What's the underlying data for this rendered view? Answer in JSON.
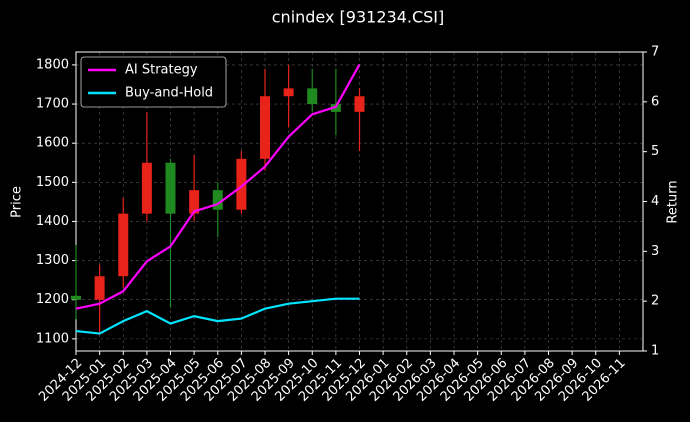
{
  "chart_data": {
    "type": "candlestick",
    "title": "cnindex [931234.CSI]",
    "y_label": "Price",
    "y2_label": "Return",
    "x": [
      "2024-12",
      "2025-01",
      "2025-02",
      "2025-03",
      "2025-04",
      "2025-05",
      "2025-06",
      "2025-07",
      "2025-08",
      "2025-09",
      "2025-10",
      "2025-11",
      "2025-12"
    ],
    "open": [
      1210,
      1200,
      1260,
      1420,
      1550,
      1420,
      1480,
      1430,
      1560,
      1720,
      1740,
      1700,
      1680
    ],
    "high": [
      1340,
      1290,
      1460,
      1680,
      1560,
      1570,
      1500,
      1580,
      1790,
      1800,
      1790,
      1790,
      1740
    ],
    "low": [
      1150,
      1110,
      1230,
      1400,
      1180,
      1400,
      1360,
      1420,
      1530,
      1640,
      1680,
      1620,
      1580
    ],
    "close": [
      1200,
      1260,
      1420,
      1550,
      1420,
      1480,
      1430,
      1560,
      1720,
      1740,
      1700,
      1680,
      1720
    ],
    "up_color": "#e8231a",
    "down_color": "#1f8a1f",
    "series": [
      {
        "name": "AI Strategy",
        "color": "#ff00ff",
        "axis": "y2",
        "values": [
          1.85,
          1.95,
          2.2,
          2.8,
          3.1,
          3.8,
          3.95,
          4.3,
          4.7,
          5.3,
          5.75,
          5.9,
          6.75
        ]
      },
      {
        "name": "Buy-and-Hold",
        "color": "#00e5ff",
        "axis": "y2",
        "values": [
          1.4,
          1.35,
          1.6,
          1.8,
          1.55,
          1.7,
          1.6,
          1.65,
          1.85,
          1.95,
          2.0,
          2.05,
          2.05
        ]
      }
    ],
    "xlim": [
      "2024-12",
      "2026-12"
    ],
    "xticks": [
      "2024-12",
      "2025-01",
      "2025-02",
      "2025-03",
      "2025-04",
      "2025-05",
      "2025-06",
      "2025-07",
      "2025-08",
      "2025-09",
      "2025-10",
      "2025-11",
      "2025-12",
      "2026-01",
      "2026-02",
      "2026-03",
      "2026-04",
      "2026-05",
      "2026-06",
      "2026-07",
      "2026-08",
      "2026-09",
      "2026-10",
      "2026-11"
    ],
    "ylim": [
      1069,
      1833
    ],
    "yticks": [
      1100,
      1200,
      1300,
      1400,
      1500,
      1600,
      1700,
      1800
    ],
    "y2lim": [
      1,
      7
    ],
    "y2ticks": [
      1,
      2,
      3,
      4,
      5,
      6,
      7
    ],
    "grid": true,
    "legend": "upper left"
  }
}
